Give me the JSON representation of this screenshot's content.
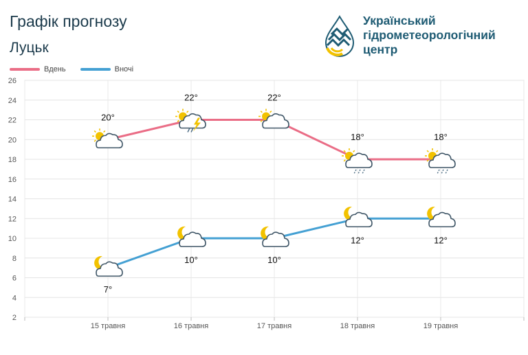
{
  "header": {
    "title": "Графік прогнозу",
    "city": "Луцьк"
  },
  "logo": {
    "line1": "Український",
    "line2": "гідрометеорологічний",
    "line3": "центр"
  },
  "colors": {
    "day": "#ea6d86",
    "night": "#44a0d3",
    "brand": "#1e5b73",
    "sun": "#f2c200",
    "rain": "#4a6b82"
  },
  "chart_data": {
    "type": "line",
    "categories": [
      "15 травня",
      "16 травня",
      "17 травня",
      "18 травня",
      "19 травня"
    ],
    "series": [
      {
        "name": "Вдень",
        "values": [
          20,
          22,
          22,
          18,
          18
        ],
        "labels": [
          "20°",
          "22°",
          "22°",
          "18°",
          "18°"
        ],
        "icons": [
          "sun-cloud-icon",
          "sun-thunderstorm-icon",
          "sun-cloud-icon",
          "sun-cloud-rain-icon",
          "sun-cloud-rain-icon"
        ]
      },
      {
        "name": "Вночі",
        "values": [
          7,
          10,
          10,
          12,
          12
        ],
        "labels": [
          "7°",
          "10°",
          "10°",
          "12°",
          "12°"
        ],
        "icons": [
          "moon-cloud-icon",
          "moon-cloud-icon",
          "moon-cloud-icon",
          "moon-cloud-icon",
          "moon-cloud-icon"
        ]
      }
    ],
    "yticks": [
      "2",
      "4",
      "6",
      "8",
      "10",
      "12",
      "14",
      "16",
      "18",
      "20",
      "22",
      "24",
      "26"
    ],
    "ylim": [
      2,
      26
    ],
    "grid": true,
    "legend": "top-left"
  }
}
